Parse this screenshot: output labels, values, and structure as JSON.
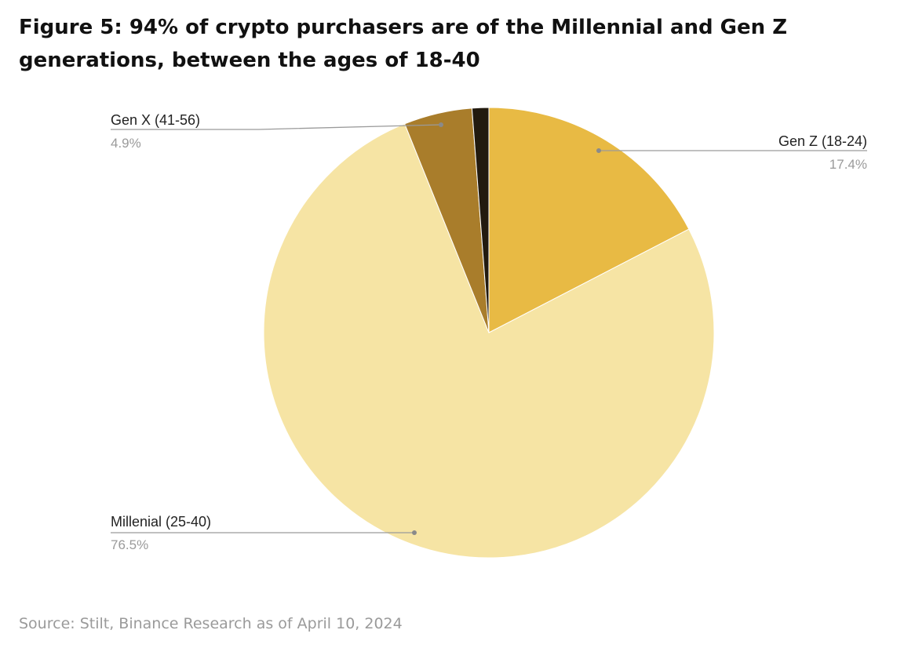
{
  "figure": {
    "title": "Figure 5: 94% of crypto purchasers are of the Millennial and Gen Z generations, between the ages of 18-40",
    "source": "Source: Stilt, Binance Research as of April 10, 2024"
  },
  "chart_data": {
    "type": "pie",
    "title": "Figure 5: 94% of crypto purchasers are of the Millennial and Gen Z generations, between the ages of 18-40",
    "slices": [
      {
        "label": "Gen Z (18-24)",
        "value": 17.4,
        "value_label": "17.4%",
        "color": "#E8BA44",
        "labeled": true
      },
      {
        "label": "Millenial (25-40)",
        "value": 76.5,
        "value_label": "76.5%",
        "color": "#F6E4A4",
        "labeled": true
      },
      {
        "label": "Gen X (41-56)",
        "value": 4.9,
        "value_label": "4.9%",
        "color": "#A97D2B",
        "labeled": true
      },
      {
        "label": "",
        "value": 1.2,
        "value_label": "",
        "color": "#221A0F",
        "labeled": false
      }
    ],
    "start_angle": "12 o'clock",
    "direction": "clockwise",
    "label_color": "#222222",
    "value_label_color": "#9a9a9a",
    "leader_color": "#9a9a9a"
  }
}
